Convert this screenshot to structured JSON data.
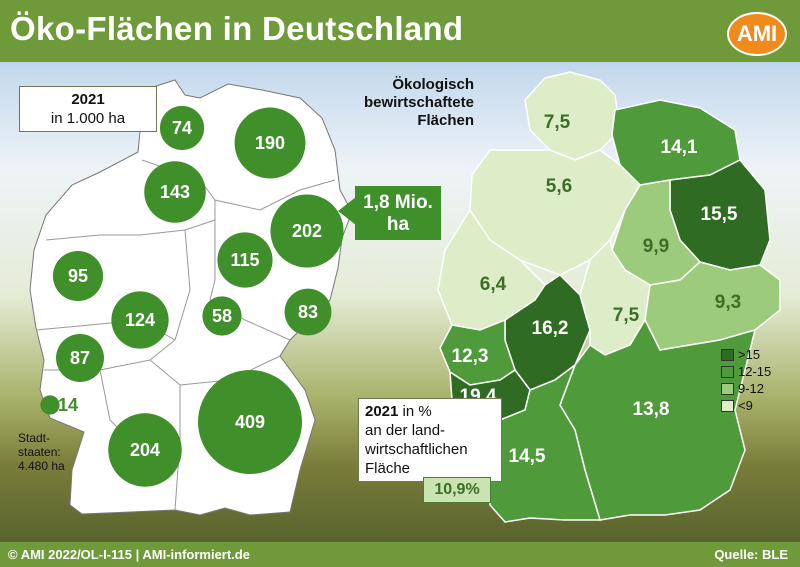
{
  "title": "Öko-Flächen in Deutschland",
  "logo": "AMI",
  "footer": {
    "credit": "© AMI 2022/OL-I-115 | AMI-informiert.de",
    "source": "Quelle: BLE"
  },
  "colors": {
    "accent": "#6f9a3a",
    "bubble": "#3f8f2a",
    "logo": "#f08a1c"
  },
  "left_panel": {
    "heading_year": "2021",
    "heading_unit": "in 1.000 ha",
    "total_line1": "1,8 Mio.",
    "total_line2": "ha",
    "stadtstaaten_line1": "Stadt-",
    "stadtstaaten_line2": "staaten:",
    "stadtstaaten_line3": "4.480 ha"
  },
  "right_panel": {
    "title_line1": "Ökologisch",
    "title_line2": "bewirtschaftete",
    "title_line3": "Flächen",
    "share_year": "2021",
    "share_line1": "in %",
    "share_line2": "an der land-",
    "share_line3": "wirtschaftlichen",
    "share_line4": "Fläche",
    "national": "10,9%"
  },
  "chart_data": [
    {
      "type": "bubble-map",
      "unit": "1.000 ha",
      "year": "2021",
      "values": [
        {
          "label": "74",
          "value": 74
        },
        {
          "label": "190",
          "value": 190
        },
        {
          "label": "143",
          "value": 143
        },
        {
          "label": "202",
          "value": 202
        },
        {
          "label": "115",
          "value": 115
        },
        {
          "label": "95",
          "value": 95
        },
        {
          "label": "124",
          "value": 124
        },
        {
          "label": "58",
          "value": 58
        },
        {
          "label": "83",
          "value": 83
        },
        {
          "label": "87",
          "value": 87
        },
        {
          "label": "14",
          "value": 14
        },
        {
          "label": "409",
          "value": 409
        },
        {
          "label": "204",
          "value": 204
        }
      ],
      "total": "1,8 Mio. ha"
    },
    {
      "type": "choropleth-map",
      "unit": "%",
      "values": [
        {
          "label": "7,5",
          "value": 7.5,
          "class": "<9"
        },
        {
          "label": "14,1",
          "value": 14.1,
          "class": "12-15"
        },
        {
          "label": "5,6",
          "value": 5.6,
          "class": "<9"
        },
        {
          "label": "15,5",
          "value": 15.5,
          "class": ">15"
        },
        {
          "label": "9,9",
          "value": 9.9,
          "class": "9-12"
        },
        {
          "label": "6,4",
          "value": 6.4,
          "class": "<9"
        },
        {
          "label": "16,2",
          "value": 16.2,
          "class": ">15"
        },
        {
          "label": "7,5",
          "value": 7.5,
          "class": "<9"
        },
        {
          "label": "9,3",
          "value": 9.3,
          "class": "9-12"
        },
        {
          "label": "12,3",
          "value": 12.3,
          "class": "12-15"
        },
        {
          "label": "19,4",
          "value": 19.4,
          "class": ">15"
        },
        {
          "label": "13,8",
          "value": 13.8,
          "class": "12-15"
        },
        {
          "label": "14,5",
          "value": 14.5,
          "class": "12-15"
        }
      ],
      "legend": [
        {
          "label": ">15",
          "color": "#2f6b22"
        },
        {
          "label": "12-15",
          "color": "#4f9a3a"
        },
        {
          "label": "9-12",
          "color": "#9ccb7c"
        },
        {
          "label": "<9",
          "color": "#dcedc7"
        }
      ],
      "national": "10,9%"
    }
  ]
}
